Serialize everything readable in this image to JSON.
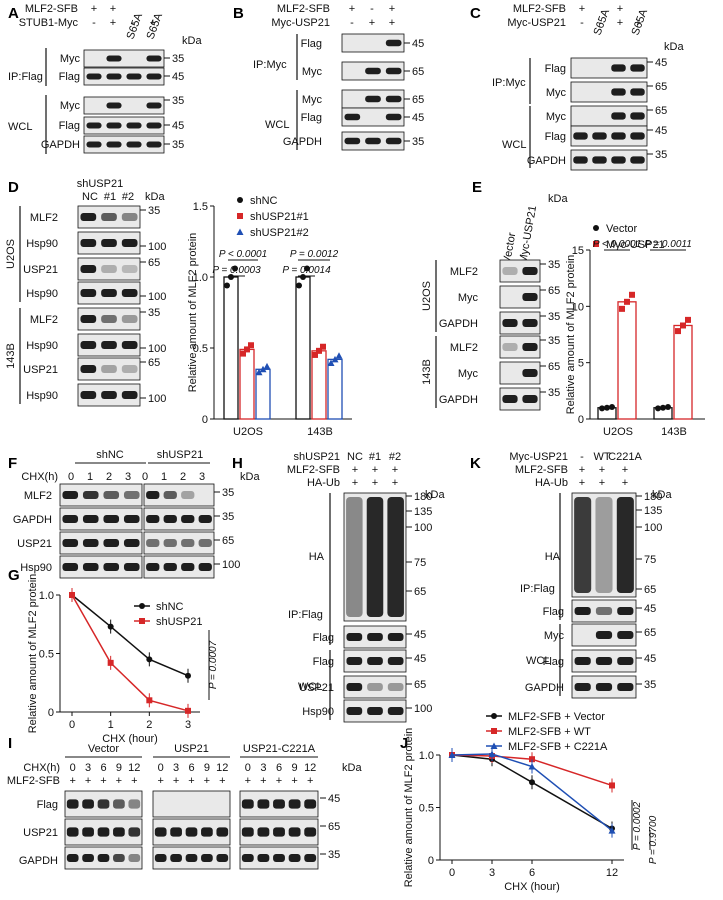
{
  "panels": {
    "A": {
      "label": "A",
      "rows": [
        "MLF2-SFB",
        "STUB1-Myc"
      ],
      "lanes": [
        [
          "+",
          "+",
          "S65A",
          "S65A"
        ],
        [
          "-",
          "+",
          "-",
          "+"
        ]
      ],
      "kda": "kDa",
      "groups": [
        "IP:Flag",
        "WCL"
      ],
      "blots": [
        "Myc",
        "Flag",
        "Myc",
        "Flag",
        "GAPDH"
      ],
      "mw": [
        "35",
        "45",
        "35",
        "45",
        "35"
      ]
    },
    "B": {
      "label": "B",
      "rows": [
        "MLF2-SFB",
        "Myc-USP21"
      ],
      "lanes": [
        [
          "+",
          "-",
          "+"
        ],
        [
          "-",
          "+",
          "+"
        ]
      ],
      "groups": [
        "IP:Myc",
        "WCL"
      ],
      "blots": [
        "Flag",
        "Myc",
        "Myc",
        "Flag",
        "GAPDH"
      ],
      "mw": [
        "45",
        "65",
        "65",
        "45",
        "35"
      ]
    },
    "C": {
      "label": "C",
      "rows": [
        "MLF2-SFB",
        "Myc-USP21"
      ],
      "lanes": [
        [
          "+",
          "S65A",
          "+",
          "S65A"
        ],
        [
          "-",
          "-",
          "+",
          "+"
        ]
      ],
      "kda": "kDa",
      "groups": [
        "IP:Myc",
        "WCL"
      ],
      "blots": [
        "Flag",
        "Myc",
        "Myc",
        "Flag",
        "GAPDH"
      ],
      "mw": [
        "45",
        "65",
        "65",
        "45",
        "35"
      ]
    },
    "D": {
      "label": "D",
      "header": "shUSP21",
      "lanes": [
        "NC",
        "#1",
        "#2"
      ],
      "kda": "kDa",
      "cells": [
        "U2OS",
        "143B"
      ],
      "blots": [
        "MLF2",
        "Hsp90",
        "USP21",
        "Hsp90",
        "MLF2",
        "Hsp90",
        "USP21",
        "Hsp90"
      ],
      "mw": [
        "35",
        "100",
        "65",
        "100",
        "35",
        "100",
        "65",
        "100"
      ]
    },
    "E": {
      "label": "E",
      "lanes": [
        "Vector",
        "Myc-USP21"
      ],
      "kda": "kDa",
      "cells": [
        "U2OS",
        "143B"
      ],
      "blots": [
        "MLF2",
        "Myc",
        "GAPDH",
        "MLF2",
        "Myc",
        "GAPDH"
      ],
      "mw": [
        "35",
        "65",
        "35",
        "35",
        "65",
        "35"
      ]
    },
    "F": {
      "label": "F",
      "groups": [
        "shNC",
        "shUSP21"
      ],
      "row": "CHX(h)",
      "lanes": [
        "0",
        "1",
        "2",
        "3",
        "0",
        "1",
        "2",
        "3"
      ],
      "kda": "kDa",
      "blots": [
        "MLF2",
        "GAPDH",
        "USP21",
        "Hsp90"
      ],
      "mw": [
        "35",
        "35",
        "65",
        "100"
      ]
    },
    "G": {
      "label": "G"
    },
    "H": {
      "label": "H",
      "rows": [
        "shUSP21",
        "MLF2-SFB",
        "HA-Ub"
      ],
      "lanes": [
        [
          "NC",
          "#1",
          "#2"
        ],
        [
          "+",
          "+",
          "+"
        ],
        [
          "+",
          "+",
          "+"
        ]
      ],
      "kda": "kDa",
      "ha_mw": [
        "180",
        "135",
        "100",
        "75",
        "65"
      ],
      "groups": [
        "IP:Flag",
        "WCL"
      ],
      "blots": [
        "HA",
        "Flag",
        "Flag",
        "USP21",
        "Hsp90"
      ],
      "mw": [
        "45",
        "45",
        "65",
        "100"
      ]
    },
    "I": {
      "label": "I",
      "groups": [
        "Vector",
        "USP21",
        "USP21-C221A"
      ],
      "rows": [
        "CHX(h)",
        "MLF2-SFB"
      ],
      "times": [
        "0",
        "3",
        "6",
        "9",
        "12"
      ],
      "plus": "+",
      "kda": "kDa",
      "blots": [
        "Flag",
        "USP21",
        "GAPDH"
      ],
      "mw": [
        "45",
        "65",
        "35"
      ]
    },
    "J": {
      "label": "J"
    },
    "K": {
      "label": "K",
      "rows": [
        "Myc-USP21",
        "MLF2-SFB",
        "HA-Ub"
      ],
      "lanes": [
        [
          "-",
          "WT",
          "C221A"
        ],
        [
          "+",
          "+",
          "+"
        ],
        [
          "+",
          "+",
          "+"
        ]
      ],
      "kda": "kDa",
      "ha_mw": [
        "180",
        "135",
        "100",
        "75",
        "65"
      ],
      "groups": [
        "IP:Flag",
        "WCL"
      ],
      "blots": [
        "HA",
        "Flag",
        "Myc",
        "Flag",
        "GAPDH"
      ],
      "mw": [
        "45",
        "65",
        "45",
        "35"
      ]
    }
  },
  "chart_data": [
    {
      "id": "D",
      "type": "bar",
      "ylabel": "Relative amount of MLF2 protein",
      "ylim": [
        0,
        1.5
      ],
      "yticks": [
        "0",
        "0.5",
        "1.0",
        "1.5"
      ],
      "categories": [
        "U2OS",
        "143B"
      ],
      "series": [
        {
          "name": "shNC",
          "values": [
            1.0,
            1.0
          ],
          "color": "#111111"
        },
        {
          "name": "shUSP21#1",
          "values": [
            0.49,
            0.48
          ],
          "color": "#d62728"
        },
        {
          "name": "shUSP21#2",
          "values": [
            0.35,
            0.42
          ],
          "color": "#1f4fb4"
        }
      ],
      "annotations": [
        "P < 0.0001",
        "P = 0.0003",
        "P = 0.0012",
        "P = 0.0014"
      ]
    },
    {
      "id": "E",
      "type": "bar",
      "ylabel": "Relative amount of MLF2 protein",
      "ylim": [
        0,
        15
      ],
      "yticks": [
        "0",
        "5",
        "10",
        "15"
      ],
      "categories": [
        "U2OS",
        "143B"
      ],
      "series": [
        {
          "name": "Vector",
          "values": [
            1.0,
            1.0
          ],
          "color": "#111111"
        },
        {
          "name": "Myc-USP21",
          "values": [
            10.4,
            8.3
          ],
          "color": "#d62728"
        }
      ],
      "annotations": [
        "P < 0.0001",
        "P = 0.0011"
      ]
    },
    {
      "id": "G",
      "type": "line",
      "ylabel": "Relative amount of MLF2 protein",
      "xlabel": "CHX (hour)",
      "ylim": [
        0,
        1.0
      ],
      "yticks": [
        "0",
        "0.5",
        "1.0"
      ],
      "x": [
        0,
        1,
        2,
        3
      ],
      "series": [
        {
          "name": "shNC",
          "values": [
            1.0,
            0.73,
            0.45,
            0.31
          ],
          "color": "#111111"
        },
        {
          "name": "shUSP21",
          "values": [
            1.0,
            0.42,
            0.1,
            0.01
          ],
          "color": "#d62728"
        }
      ],
      "annotations": [
        "P = 0.0007"
      ]
    },
    {
      "id": "J",
      "type": "line",
      "ylabel": "Relative amount of MLF2 protein",
      "xlabel": "CHX (hour)",
      "ylim": [
        0,
        1.0
      ],
      "yticks": [
        "0",
        "0.5",
        "1.0"
      ],
      "x": [
        0,
        3,
        6,
        12
      ],
      "series": [
        {
          "name": "MLF2-SFB + Vector",
          "values": [
            1.0,
            0.96,
            0.74,
            0.3
          ],
          "color": "#111111"
        },
        {
          "name": "MLF2-SFB + WT",
          "values": [
            1.0,
            0.99,
            0.96,
            0.71
          ],
          "color": "#d62728"
        },
        {
          "name": "MLF2-SFB + C221A",
          "values": [
            1.0,
            1.01,
            0.89,
            0.28
          ],
          "color": "#1f4fb4"
        }
      ],
      "annotations": [
        "P = 0.0002",
        "P = 0.9700"
      ]
    }
  ]
}
